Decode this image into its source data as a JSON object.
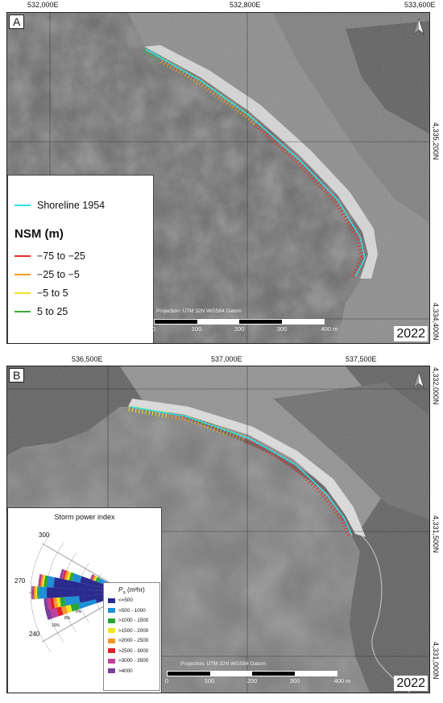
{
  "panel_a": {
    "label": "A",
    "year": "2022",
    "projection": "Projection: UTM 32N WGS84 Datum",
    "coords_top": [
      "532,000E",
      "532,800E",
      "533,600E"
    ],
    "coords_right": [
      "4,335,200N",
      "4,334,400N"
    ],
    "scale_ticks": [
      "0",
      "100",
      "200",
      "300",
      "400 m"
    ],
    "legend": {
      "shoreline_label": "Shoreline 1954",
      "nsm_title": "NSM (m)",
      "classes": [
        {
          "label": "−75 to −25",
          "color": "#e8302a"
        },
        {
          "label": "−25 to −5",
          "color": "#f39c1e"
        },
        {
          "label": "−5 to 5",
          "color": "#f2e41c"
        },
        {
          "label": " 5 to 25",
          "color": "#3aa935"
        }
      ]
    }
  },
  "panel_b": {
    "label": "B",
    "year": "2022",
    "projection": "Projection: UTM 32N WGS84 Datum",
    "coords_top": [
      "536,500E",
      "537,000E",
      "537,500E"
    ],
    "coords_right": [
      "4,332,000N",
      "4,331,500N",
      "4,331,000N"
    ],
    "scale_ticks": [
      "0",
      "100",
      "200",
      "300",
      "400 m"
    ],
    "storm": {
      "title": "Storm power index",
      "dir_labels": [
        "300",
        "270",
        "240"
      ],
      "ring_labels": [
        "6%",
        "8%",
        "10%"
      ],
      "ps_title": "P",
      "ps_sub": "s",
      "ps_unit": " (m²hr)",
      "classes": [
        {
          "label": "<=500",
          "color": "#2b2b8f"
        },
        {
          "label": ">500 - 1000",
          "color": "#1f8fd6"
        },
        {
          "label": ">1000 - 1500",
          "color": "#2aa63a"
        },
        {
          "label": ">1500 - 2000",
          "color": "#f0e51d"
        },
        {
          "label": ">2000 - 2500",
          "color": "#f39a2a"
        },
        {
          "label": ">2500 - 3000",
          "color": "#e21f26"
        },
        {
          "label": ">3000 - 3500",
          "color": "#c4409d"
        },
        {
          "label": ">4000",
          "color": "#7a3f9a"
        }
      ]
    }
  },
  "colors": {
    "shoreline_1954": "#2fe0e6",
    "transect_red": "#e8302a",
    "transect_orange": "#f39c1e",
    "transect_yellow": "#f2e41c",
    "transect_green": "#3aa935"
  }
}
